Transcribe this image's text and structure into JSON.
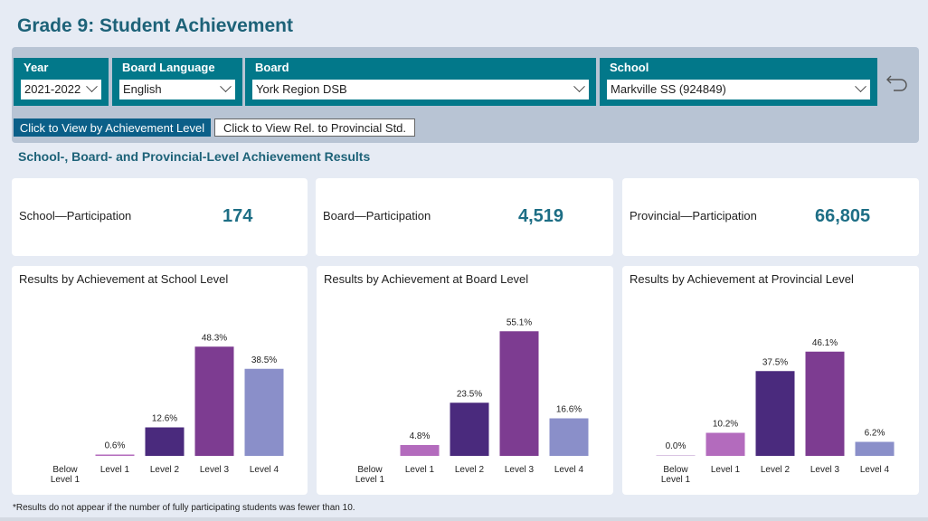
{
  "page_title": "Grade 9: Student Achievement",
  "filters": [
    {
      "label": "Year",
      "value": "2021-2022"
    },
    {
      "label": "Board Language",
      "value": "English"
    },
    {
      "label": "Board",
      "value": "York Region DSB"
    },
    {
      "label": "School",
      "value": "Markville SS (924849)"
    }
  ],
  "buttons": {
    "by_level": "Click to View by Achievement Level",
    "rel_provincial": "Click to View Rel. to Provincial Std."
  },
  "section_title": "School-, Board- and Provincial-Level Achievement Results",
  "participation": [
    {
      "label": "School—Participation",
      "value": "174"
    },
    {
      "label": "Board—Participation",
      "value": "4,519"
    },
    {
      "label": "Provincial—Participation",
      "value": "66,805"
    }
  ],
  "footnote": "*Results do not appear if the number of fully participating students was fewer than 10.",
  "colors": {
    "below_level_1": "#d9c4e3",
    "level_1": "#b36bbd",
    "level_2": "#4a2a7d",
    "level_3": "#7d3c91",
    "level_4": "#8a8fc9"
  },
  "chart_data": [
    {
      "type": "bar",
      "title": "Results by Achievement at School Level",
      "categories": [
        "Below Level 1",
        "Level 1",
        "Level 2",
        "Level 3",
        "Level 4"
      ],
      "values": [
        null,
        0.6,
        12.6,
        48.3,
        38.5
      ],
      "labels": [
        "",
        "0.6%",
        "12.6%",
        "48.3%",
        "38.5%"
      ],
      "ylim": [
        0,
        60
      ]
    },
    {
      "type": "bar",
      "title": "Results by Achievement at Board Level",
      "categories": [
        "Below Level 1",
        "Level 1",
        "Level 2",
        "Level 3",
        "Level 4"
      ],
      "values": [
        null,
        4.8,
        23.5,
        55.1,
        16.6
      ],
      "labels": [
        "",
        "4.8%",
        "23.5%",
        "55.1%",
        "16.6%"
      ],
      "ylim": [
        0,
        60
      ]
    },
    {
      "type": "bar",
      "title": "Results by Achievement at Provincial Level",
      "categories": [
        "Below Level 1",
        "Level 1",
        "Level 2",
        "Level 3",
        "Level 4"
      ],
      "values": [
        0.0,
        10.2,
        37.5,
        46.1,
        6.2
      ],
      "labels": [
        "0.0%",
        "10.2%",
        "37.5%",
        "46.1%",
        "6.2%"
      ],
      "ylim": [
        0,
        60
      ]
    }
  ]
}
